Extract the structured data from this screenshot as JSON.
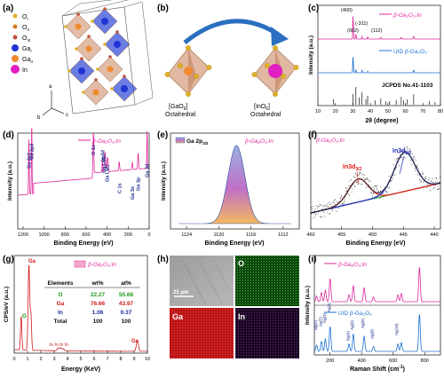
{
  "panels": {
    "a": {
      "letter": "(a)",
      "legend": [
        {
          "label": "O",
          "sub": "I",
          "color": "#e0b028"
        },
        {
          "label": "O",
          "sub": "II",
          "color": "#d07a20"
        },
        {
          "label": "O",
          "sub": "III",
          "color": "#c0503a"
        },
        {
          "label": "Ga",
          "sub": "I",
          "color": "#2233d6"
        },
        {
          "label": "Ga",
          "sub": "II",
          "color": "#f08a30"
        },
        {
          "label": "In",
          "sub": "",
          "color": "#e020c0"
        }
      ],
      "axes": [
        "a",
        "b",
        "c"
      ]
    },
    "b": {
      "letter": "(b)",
      "left_label_1": "[GaO",
      "left_label_sub": "6",
      "left_label_2": "]",
      "left_label_3": "Octahedral",
      "right_label_1": "[InO",
      "right_label_sub": "6",
      "right_label_2": "]",
      "right_label_3": "Octahedral"
    },
    "c": {
      "letter": "(c)",
      "xlabel": "2θ (degree)",
      "ylabel": "Intensity (a.u.)",
      "xticks": [
        "10",
        "20",
        "30",
        "40",
        "50",
        "60",
        "70",
        "80"
      ],
      "legend_top": "β-Ga₂O₃:In",
      "legend_mid": "UID β-Ga₂O₃",
      "legend_bot": "JCPDS No.41-1103",
      "peak_labels": [
        "(400)",
        "(-311)",
        "(002)",
        "(112)"
      ]
    },
    "d": {
      "letter": "(d)",
      "xlabel": "Binding Energy (eV)",
      "ylabel": "Intensity (a.u.)",
      "xticks": [
        "1200",
        "1000",
        "800",
        "600",
        "400",
        "200",
        "0"
      ],
      "legend": "β-Ga₂O₃:In",
      "peak_labels": [
        "Ga 2p1",
        "Ga 2p3",
        "O 1s",
        "Ga LM2",
        "Ga LM1",
        "In 3d",
        "C 1s",
        "Ga 3s",
        "Ga 3p",
        "Ga 3d"
      ]
    },
    "e": {
      "letter": "(e)",
      "xlabel": "Binding Energy (eV)",
      "ylabel": "Intensity (a.u.)",
      "xticks": [
        "1124",
        "1120",
        "1116",
        "1112"
      ],
      "legend": "Ga 2p",
      "legend_sub": "3/2",
      "title": "β-Ga₂O₃:In"
    },
    "f": {
      "letter": "(f)",
      "xlabel": "Binding Energy (eV)",
      "xticks": [
        "460",
        "455",
        "450",
        "445",
        "440"
      ],
      "title": "β-Ga₂O₃:In",
      "label_1": "In3d",
      "label_1_sub": "3/2",
      "label_2": "In3d",
      "label_2_sub": "5/2"
    },
    "g": {
      "letter": "(g)",
      "xlabel": "Energy (KeV)",
      "ylabel": "CPS/eV (a.u.)",
      "xticks": [
        "0",
        "1",
        "2",
        "3",
        "4",
        "5",
        "6",
        "7",
        "8",
        "9",
        "10"
      ],
      "legend": "β-Ga₂O₃:In",
      "peak_labels": [
        "Ga",
        "O",
        "In In In In",
        "Ga"
      ],
      "table": {
        "headers": [
          "Elements",
          "wt%",
          "at%"
        ],
        "rows": [
          {
            "el": "O",
            "wt": "22.27",
            "at": "55.66",
            "color": "#1a9a1a"
          },
          {
            "el": "Ga",
            "wt": "76.66",
            "at": "43.97",
            "color": "#d01818"
          },
          {
            "el": "In",
            "wt": "1.06",
            "at": "0.37",
            "color": "#1a2aa0"
          },
          {
            "el": "Total",
            "wt": "100",
            "at": "100",
            "color": "#111111"
          }
        ]
      }
    },
    "h": {
      "letter": "(h)",
      "scale": "25 μm",
      "maps": [
        "O",
        "Ga",
        "In"
      ]
    },
    "i": {
      "letter": "(i)",
      "xlabel": "Raman Shift (cm",
      "xlabel_sup": "-1",
      "xlabel_end": ")",
      "ylabel": "Intensity (a.u.)",
      "xticks": [
        "200",
        "400",
        "600",
        "800"
      ],
      "legend_top": "β-Ga₂O₃:In",
      "legend_bot": "UID β-Ga₂O₃",
      "mode_labels": [
        "Bg(2)",
        "Ag(2)",
        "Ag(3)",
        "Ag(4)",
        "Bg(4)",
        "Ag(5)",
        "Ag(6)",
        "Ag(8)",
        "Ag(10)"
      ]
    }
  },
  "colors": {
    "pink": "#e0289a",
    "blue": "#1c6fd0",
    "black": "#111111",
    "navy": "#1a2a8a",
    "green": "#2aa02a"
  }
}
